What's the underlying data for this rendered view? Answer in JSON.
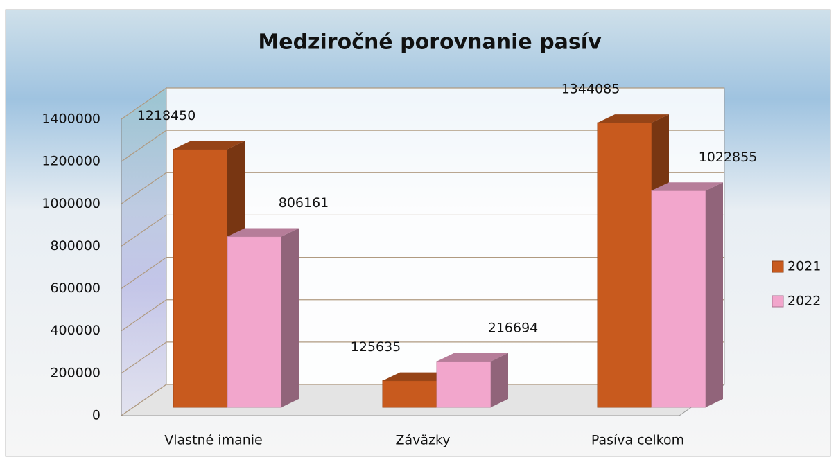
{
  "chart_data": {
    "type": "bar3d",
    "title": "Medziročné porovnanie pasív",
    "categories": [
      "Vlastné imanie",
      "Záväzky",
      "Pasíva celkom"
    ],
    "series": [
      {
        "name": "2021",
        "color": "#c85a1e",
        "values": [
          1218450,
          125635,
          1344085
        ]
      },
      {
        "name": "2022",
        "color": "#f2a6cc",
        "values": [
          806161,
          216694,
          1022855
        ]
      }
    ],
    "ylim": [
      0,
      1400000
    ],
    "yticks": [
      0,
      200000,
      400000,
      600000,
      800000,
      1000000,
      1200000,
      1400000
    ],
    "grid": true,
    "legend": "right"
  }
}
